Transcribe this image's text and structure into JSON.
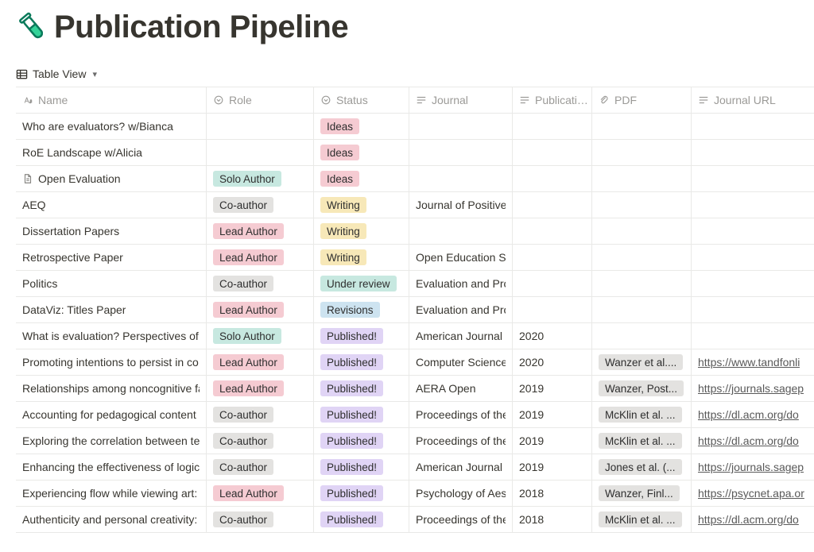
{
  "page": {
    "title": "Publication Pipeline",
    "icon_colors": {
      "outline": "#0b7a5b",
      "fill": "#34d399"
    }
  },
  "view": {
    "label": "Table View"
  },
  "columns": {
    "name": "Name",
    "role": "Role",
    "status": "Status",
    "journal": "Journal",
    "publication": "Publicati…",
    "pdf": "PDF",
    "journal_url": "Journal URL"
  },
  "tag_colors": {
    "teal": "#c7e8e0",
    "gray": "#e3e2e0",
    "pink": "#f5cbd2",
    "yellow": "#f7e8b8",
    "blue": "#cde3f0",
    "purple": "#e0d4f5"
  },
  "rows": [
    {
      "name": "Who are evaluators? w/Bianca",
      "role": null,
      "status": {
        "label": "Ideas",
        "color": "pink"
      },
      "journal": "",
      "pub": "",
      "pdf": null,
      "url": ""
    },
    {
      "name": "RoE Landscape w/Alicia",
      "role": null,
      "status": {
        "label": "Ideas",
        "color": "pink"
      },
      "journal": "",
      "pub": "",
      "pdf": null,
      "url": ""
    },
    {
      "name": "Open Evaluation",
      "has_doc_icon": true,
      "role": {
        "label": "Solo Author",
        "color": "teal"
      },
      "status": {
        "label": "Ideas",
        "color": "pink"
      },
      "journal": "",
      "pub": "",
      "pdf": null,
      "url": ""
    },
    {
      "name": "AEQ",
      "role": {
        "label": "Co-author",
        "color": "gray"
      },
      "status": {
        "label": "Writing",
        "color": "yellow"
      },
      "journal": "Journal of Positive ",
      "pub": "",
      "pdf": null,
      "url": ""
    },
    {
      "name": "Dissertation Papers",
      "role": {
        "label": "Lead Author",
        "color": "pink"
      },
      "status": {
        "label": "Writing",
        "color": "yellow"
      },
      "journal": "",
      "pub": "",
      "pdf": null,
      "url": ""
    },
    {
      "name": "Retrospective Paper",
      "role": {
        "label": "Lead Author",
        "color": "pink"
      },
      "status": {
        "label": "Writing",
        "color": "yellow"
      },
      "journal": "Open Education Stu",
      "pub": "",
      "pdf": null,
      "url": ""
    },
    {
      "name": "Politics",
      "role": {
        "label": "Co-author",
        "color": "gray"
      },
      "status": {
        "label": "Under review",
        "color": "teal"
      },
      "journal": "Evaluation and Pro",
      "pub": "",
      "pdf": null,
      "url": ""
    },
    {
      "name": "DataViz: Titles Paper",
      "role": {
        "label": "Lead Author",
        "color": "pink"
      },
      "status": {
        "label": "Revisions",
        "color": "blue"
      },
      "journal": "Evaluation and Pro",
      "pub": "",
      "pdf": null,
      "url": ""
    },
    {
      "name": "What is evaluation? Perspectives of h",
      "role": {
        "label": "Solo Author",
        "color": "teal"
      },
      "status": {
        "label": "Published!",
        "color": "purple"
      },
      "journal": "American Journal o",
      "pub": "2020",
      "pdf": null,
      "url": ""
    },
    {
      "name": "Promoting intentions to persist in co",
      "role": {
        "label": "Lead Author",
        "color": "pink"
      },
      "status": {
        "label": "Published!",
        "color": "purple"
      },
      "journal": "Computer Science",
      "pub": "2020",
      "pdf": {
        "label": "Wanzer et al....",
        "color": "gray"
      },
      "url": "https://www.tandfonli"
    },
    {
      "name": "Relationships among noncognitive fa",
      "role": {
        "label": "Lead Author",
        "color": "pink"
      },
      "status": {
        "label": "Published!",
        "color": "purple"
      },
      "journal": "AERA Open",
      "pub": "2019",
      "pdf": {
        "label": "Wanzer, Post...",
        "color": "gray"
      },
      "url": "https://journals.sagep"
    },
    {
      "name": "Accounting for pedagogical content",
      "role": {
        "label": "Co-author",
        "color": "gray"
      },
      "status": {
        "label": "Published!",
        "color": "purple"
      },
      "journal": "Proceedings of the",
      "pub": "2019",
      "pdf": {
        "label": "McKlin et al. ...",
        "color": "gray"
      },
      "url": "https://dl.acm.org/do"
    },
    {
      "name": "Exploring the correlation between te",
      "role": {
        "label": "Co-author",
        "color": "gray"
      },
      "status": {
        "label": "Published!",
        "color": "purple"
      },
      "journal": "Proceedings of the",
      "pub": "2019",
      "pdf": {
        "label": "McKlin et al. ...",
        "color": "gray"
      },
      "url": "https://dl.acm.org/do"
    },
    {
      "name": "Enhancing the effectiveness of logic ",
      "role": {
        "label": "Co-author",
        "color": "gray"
      },
      "status": {
        "label": "Published!",
        "color": "purple"
      },
      "journal": "American Journal o",
      "pub": "2019",
      "pdf": {
        "label": "Jones et al. (...",
        "color": "gray"
      },
      "url": "https://journals.sagep"
    },
    {
      "name": "Experiencing flow while viewing art:",
      "role": {
        "label": "Lead Author",
        "color": "pink"
      },
      "status": {
        "label": "Published!",
        "color": "purple"
      },
      "journal": "Psychology of Aest",
      "pub": "2018",
      "pdf": {
        "label": "Wanzer, Finl...",
        "color": "gray"
      },
      "url": "https://psycnet.apa.or"
    },
    {
      "name": "Authenticity and personal creativity:",
      "role": {
        "label": "Co-author",
        "color": "gray"
      },
      "status": {
        "label": "Published!",
        "color": "purple"
      },
      "journal": "Proceedings of the",
      "pub": "2018",
      "pdf": {
        "label": "McKlin et al. ...",
        "color": "gray"
      },
      "url": "https://dl.acm.org/do"
    }
  ]
}
